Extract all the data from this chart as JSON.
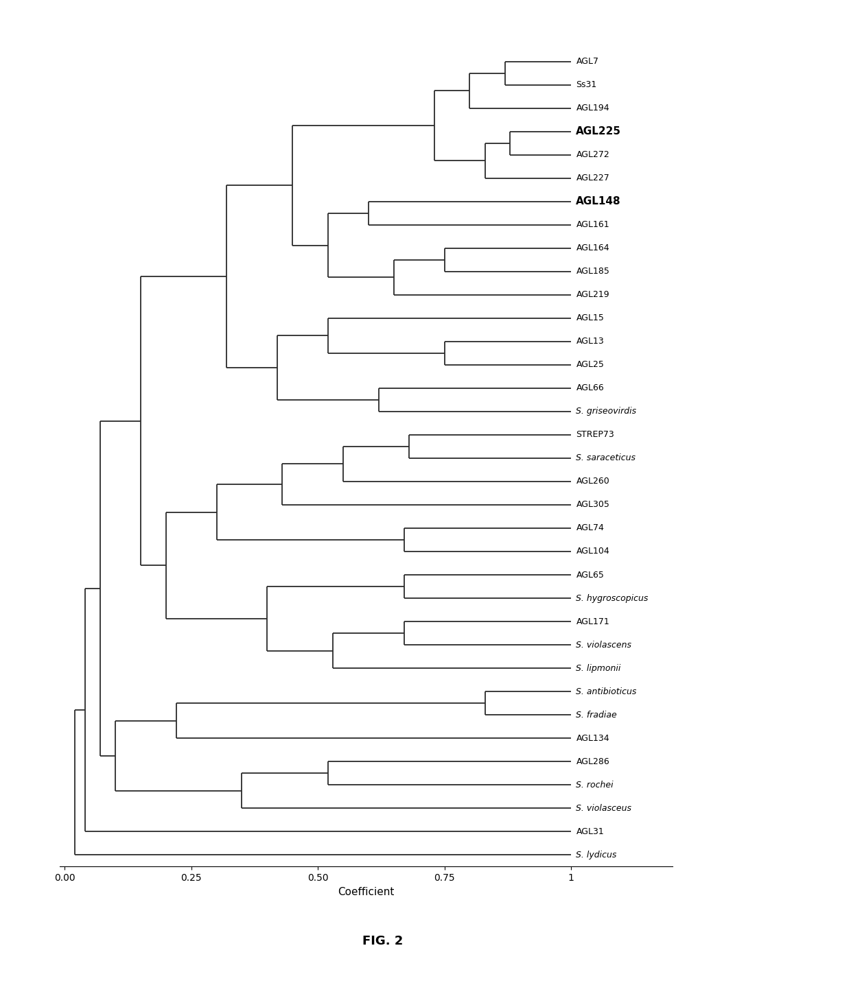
{
  "labels": [
    "AGL7",
    "Ss31",
    "AGL194",
    "AGL225",
    "AGL272",
    "AGL227",
    "AGL148",
    "AGL161",
    "AGL164",
    "AGL185",
    "AGL219",
    "AGL15",
    "AGL13",
    "AGL25",
    "AGL66",
    "S. griseovirdis",
    "STREP73",
    "S. saraceticus",
    "AGL260",
    "AGL305",
    "AGL74",
    "AGL104",
    "AGL65",
    "S. hygroscopicus",
    "AGL171",
    "S. violascens",
    "S. lipmonii",
    "S. antibioticus",
    "S. fradiae",
    "AGL134",
    "AGL286",
    "S. rochei",
    "S. violasceus",
    "AGL31",
    "S. lydicus"
  ],
  "bold_labels": [
    "AGL225",
    "AGL148"
  ],
  "italic_labels": [
    "S. griseovirdis",
    "S. saraceticus",
    "S. hygroscopicus",
    "S. violascens",
    "S. lipmonii",
    "S. antibioticus",
    "S. fradiae",
    "S. rochei",
    "S. violasceus",
    "S. lydicus"
  ],
  "xlabel": "Coefficient",
  "figure_label": "FIG. 2",
  "background_color": "#ffffff",
  "line_color": "#2b2b2b",
  "axis_fontsize": 10,
  "fig_label_fontsize": 13
}
